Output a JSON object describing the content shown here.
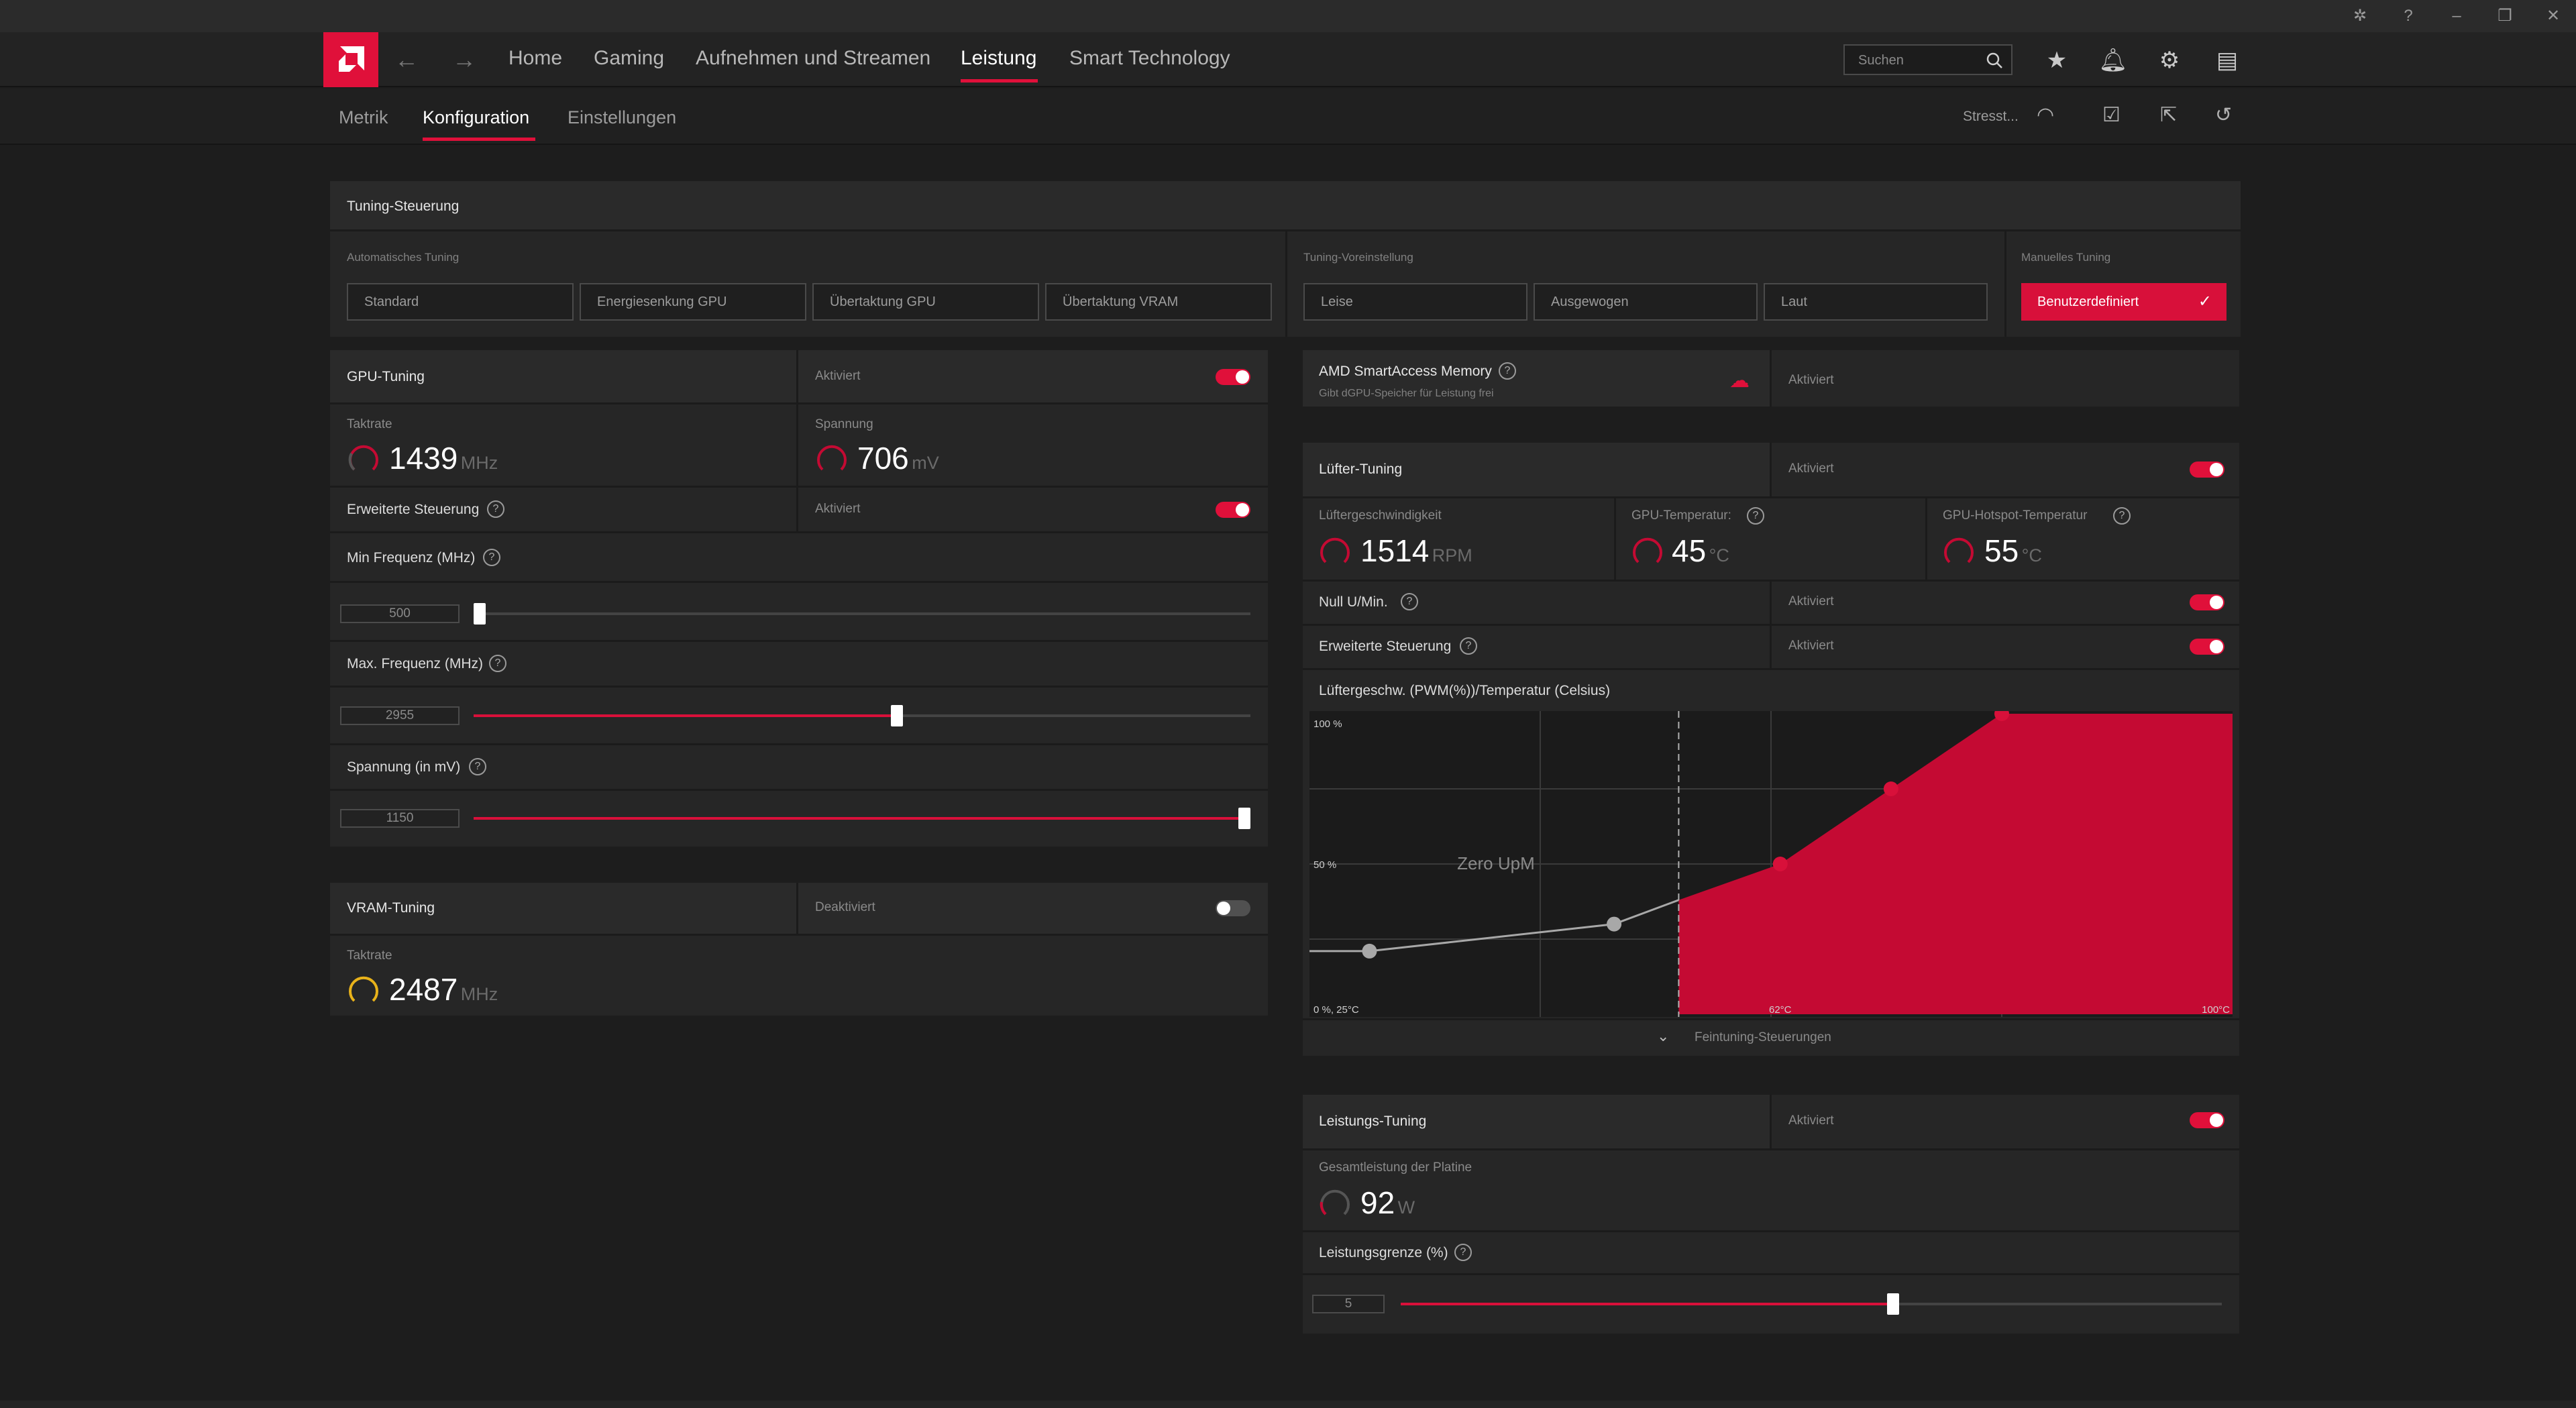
{
  "nav": {
    "items": [
      "Home",
      "Gaming",
      "Aufnehmen und Streamen",
      "Leistung",
      "Smart Technology"
    ],
    "active_index": 3,
    "search_placeholder": "Suchen"
  },
  "subnav": {
    "items": [
      "Metrik",
      "Konfiguration",
      "Einstellungen"
    ],
    "active_index": 1,
    "stress_label": "Stresst..."
  },
  "tuning_control": {
    "title": "Tuning-Steuerung",
    "auto_label": "Automatisches Tuning",
    "auto_buttons": [
      "Standard",
      "Energiesenkung GPU",
      "Übertaktung GPU",
      "Übertaktung VRAM"
    ],
    "preset_label": "Tuning-Voreinstellung",
    "preset_buttons": [
      "Leise",
      "Ausgewogen",
      "Laut"
    ],
    "manual_label": "Manuelles Tuning",
    "manual_button": "Benutzerdefiniert"
  },
  "gpu_tuning": {
    "title": "GPU-Tuning",
    "status": "Aktiviert",
    "enabled": true,
    "clock_label": "Taktrate",
    "clock_value": "1439",
    "clock_unit": "MHz",
    "voltage_label": "Spannung",
    "voltage_value": "706",
    "voltage_unit": "mV",
    "advanced_label": "Erweiterte Steuerung",
    "advanced_status": "Aktiviert",
    "advanced_enabled": true,
    "min_freq": {
      "label": "Min Frequenz (MHz)",
      "value": "500",
      "fraction": 0.0
    },
    "max_freq": {
      "label": "Max. Frequenz (MHz)",
      "value": "2955",
      "fraction": 0.545
    },
    "voltage": {
      "label": "Spannung (in mV)",
      "value": "1150",
      "fraction": 1.0
    }
  },
  "vram_tuning": {
    "title": "VRAM-Tuning",
    "status": "Deaktiviert",
    "enabled": false,
    "clock_label": "Taktrate",
    "clock_value": "2487",
    "clock_unit": "MHz"
  },
  "sam": {
    "title": "AMD SmartAccess Memory",
    "subtitle": "Gibt dGPU-Speicher für Leistung frei",
    "status": "Aktiviert"
  },
  "fan_tuning": {
    "title": "Lüfter-Tuning",
    "status": "Aktiviert",
    "enabled": true,
    "speed_label": "Lüftergeschwindigkeit",
    "speed_value": "1514",
    "speed_unit": "RPM",
    "gpu_temp_label": "GPU-Temperatur:",
    "gpu_temp_value": "45",
    "temp_unit": "°C",
    "hotspot_label": "GPU-Hotspot-Temperatur",
    "hotspot_value": "55",
    "zero_label": "Null U/Min.",
    "zero_status": "Aktiviert",
    "adv_label": "Erweiterte Steuerung",
    "adv_status": "Aktiviert",
    "curve_title": "Lüftergeschw. (PWM(%))/Temperatur (Celsius)",
    "fine_tuning": "Feintuning-Steuerungen"
  },
  "chart_data": {
    "type": "area",
    "title": "Lüftergeschw. (PWM(%))/Temperatur (Celsius)",
    "y_tick_labels": [
      "100 %",
      "50 %"
    ],
    "x_tick_labels": [
      "0 %, 25°C",
      "62°C",
      "100°C"
    ],
    "annotation": "Zero UpM",
    "inactive_points": [
      {
        "x": 0.065,
        "y": 0.21
      },
      {
        "x": 0.33,
        "y": 0.3
      }
    ],
    "active_points": [
      {
        "x": 0.4,
        "y": 0.38
      },
      {
        "x": 0.51,
        "y": 0.5
      },
      {
        "x": 0.63,
        "y": 0.75
      },
      {
        "x": 0.75,
        "y": 1.0
      },
      {
        "x": 1.0,
        "y": 1.0
      }
    ],
    "zero_rpm_limit_x": 0.4,
    "colors": {
      "fill": "#c40a33",
      "line": "#d8103a",
      "inactive": "#a8a8a8"
    }
  },
  "power_tuning": {
    "title": "Leistungs-Tuning",
    "status": "Aktiviert",
    "enabled": true,
    "board_label": "Gesamtleistung der Platine",
    "board_value": "92",
    "board_unit": "W",
    "limit_label": "Leistungsgrenze (%)",
    "limit_value": "5",
    "limit_fraction": 0.6
  }
}
